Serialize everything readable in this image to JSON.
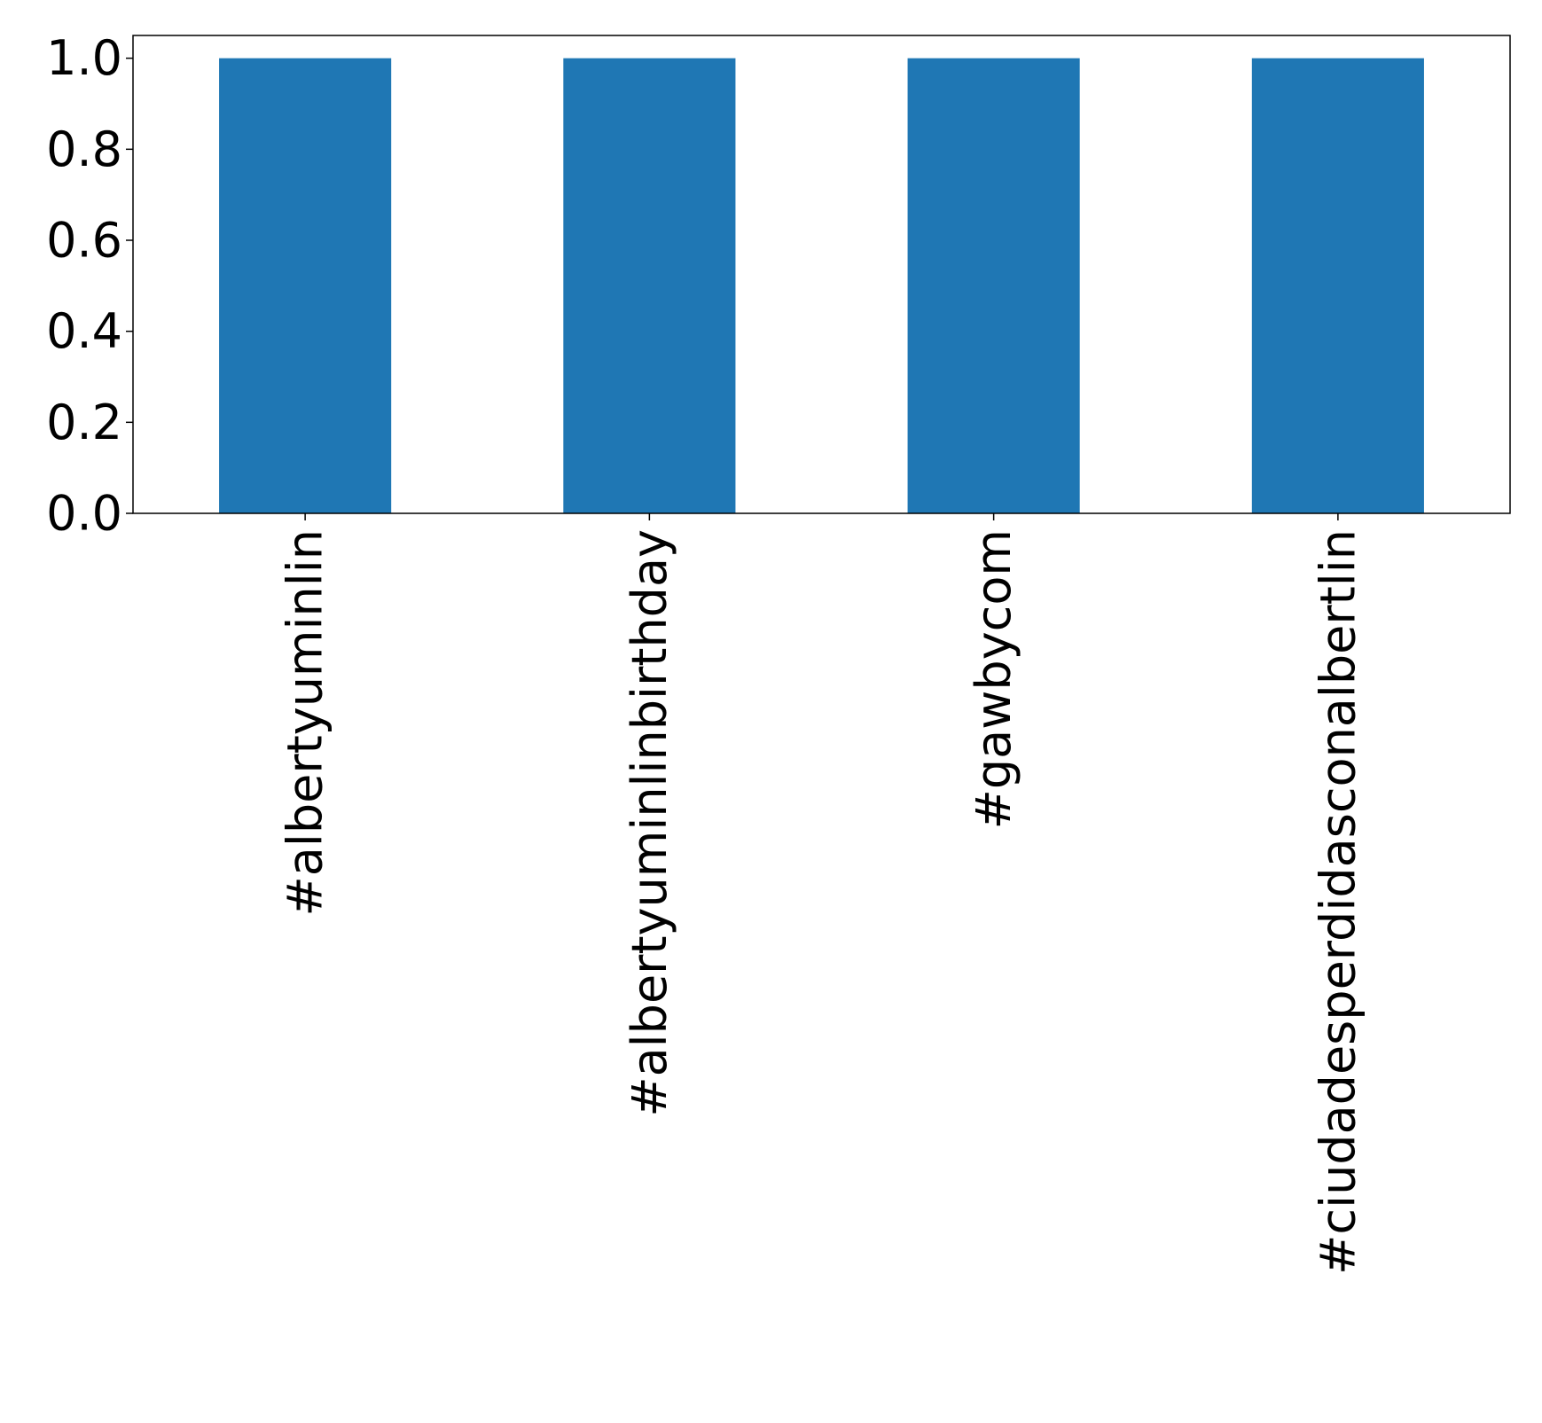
{
  "chart_data": {
    "type": "bar",
    "title": "",
    "xlabel": "",
    "ylabel": "",
    "categories": [
      "#albertyuminlin",
      "#albertyuminlinbirthday",
      "#gawbycom",
      "#ciudadesperdidasconalbertlin"
    ],
    "values": [
      1.0,
      1.0,
      1.0,
      1.0
    ],
    "ylim": [
      0,
      1.05
    ],
    "yticks": [
      "0.0",
      "0.2",
      "0.4",
      "0.6",
      "0.8",
      "1.0"
    ],
    "ytick_values": [
      0.0,
      0.2,
      0.4,
      0.6,
      0.8,
      1.0
    ],
    "bar_color": "#1f77b4",
    "grid": false,
    "legend": "none"
  }
}
